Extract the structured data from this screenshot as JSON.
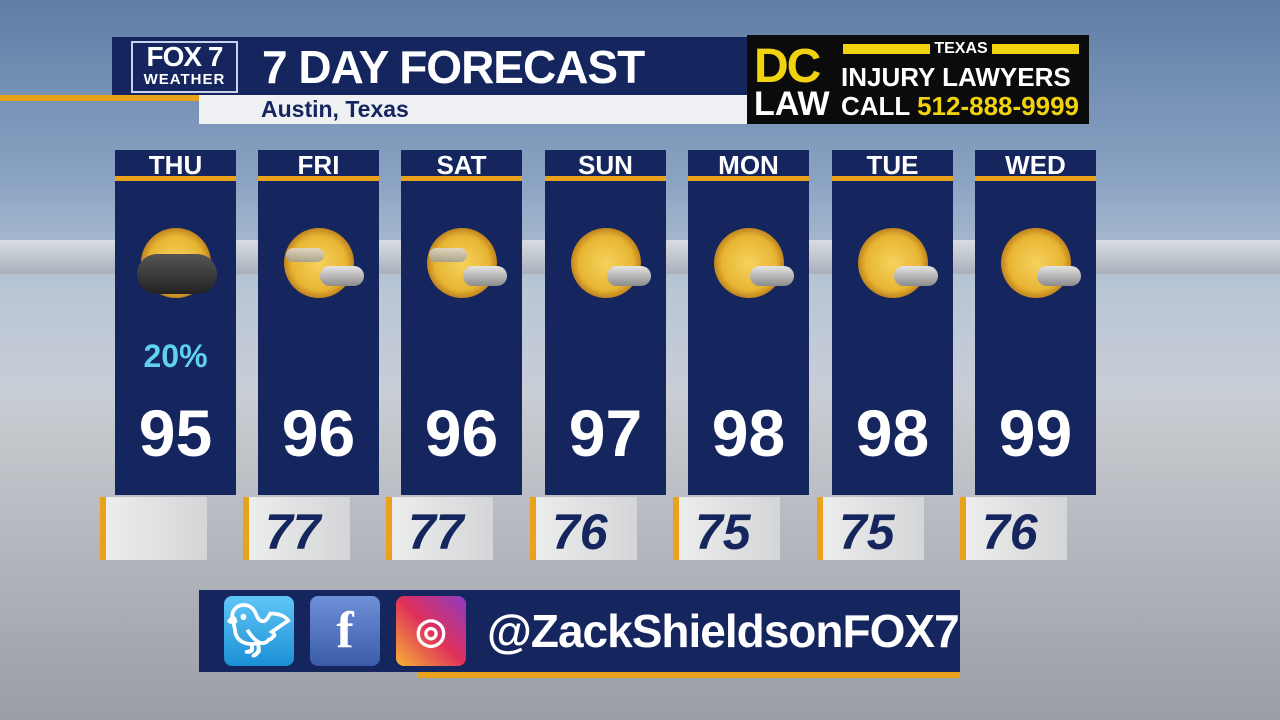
{
  "header": {
    "logo_top": "FOX 7",
    "logo_bottom": "WEATHER",
    "title": "7 DAY FORECAST",
    "location": "Austin, Texas"
  },
  "ad": {
    "brand_top": "DC",
    "brand_bottom": "LAW",
    "state": "TEXAS",
    "line1": "INJURY LAWYERS",
    "call": "CALL",
    "phone": "512-888-9999"
  },
  "days": [
    {
      "day": "THU",
      "icon": "sun-storm-cloud-rain",
      "pop": "20%",
      "high": "95",
      "low": ""
    },
    {
      "day": "FRI",
      "icon": "sun-cloud",
      "pop": "",
      "high": "96",
      "low": "77"
    },
    {
      "day": "SAT",
      "icon": "sun-cloud",
      "pop": "",
      "high": "96",
      "low": "77"
    },
    {
      "day": "SUN",
      "icon": "sun-cloud",
      "pop": "",
      "high": "97",
      "low": "76"
    },
    {
      "day": "MON",
      "icon": "sun-cloud",
      "pop": "",
      "high": "98",
      "low": "75"
    },
    {
      "day": "TUE",
      "icon": "sun-cloud",
      "pop": "",
      "high": "98",
      "low": "75"
    },
    {
      "day": "WED",
      "icon": "sun-cloud",
      "pop": "",
      "high": "99",
      "low": "76"
    }
  ],
  "social": {
    "handle": "@ZackShieldsonFOX7",
    "icons": [
      "twitter-icon",
      "facebook-icon",
      "instagram-icon"
    ]
  },
  "colors": {
    "navy": "#15255e",
    "accent": "#e9a21a",
    "pop": "#5fd0ee",
    "ad_yellow": "#f1d20e"
  }
}
